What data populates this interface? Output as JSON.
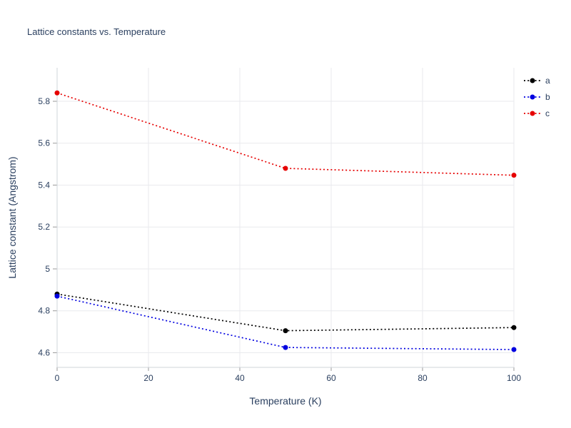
{
  "page": {
    "background": "#ffffff",
    "text_color": "#2a3f5f"
  },
  "chart_data": {
    "type": "line",
    "title": "Lattice constants vs. Temperature",
    "xlabel": "Temperature (K)",
    "ylabel": "Lattice constant (Angstrom)",
    "x": [
      0,
      50,
      100
    ],
    "series": [
      {
        "name": "a",
        "color": "#000000",
        "values": [
          4.88,
          4.705,
          4.72
        ]
      },
      {
        "name": "b",
        "color": "#0000e0",
        "values": [
          4.87,
          4.625,
          4.615
        ]
      },
      {
        "name": "c",
        "color": "#e60000",
        "values": [
          5.84,
          5.48,
          5.447
        ]
      }
    ],
    "xlim": [
      0,
      100
    ],
    "ylim": [
      4.53,
      5.96
    ],
    "xticks": [
      0,
      20,
      40,
      60,
      80,
      100
    ],
    "yticks": [
      4.6,
      4.8,
      5,
      5.2,
      5.4,
      5.6,
      5.8
    ],
    "grid": true,
    "line_style": "dotted",
    "legend_position": "top-right",
    "legend_entries": [
      "a",
      "b",
      "c"
    ],
    "grid_color": "#e9eaee",
    "axis_color": "#cfd4da",
    "tick_color": "#9a9a9a",
    "text_color": "#2a3f5f"
  }
}
